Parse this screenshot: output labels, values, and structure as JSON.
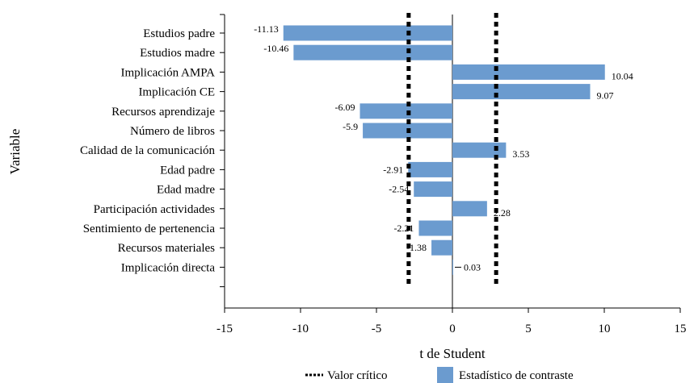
{
  "chart_data": {
    "type": "bar",
    "orientation": "horizontal",
    "categories": [
      "Estudios padre",
      "Estudios madre",
      "Implicación AMPA",
      "Implicación CE",
      "Recursos aprendizaje",
      "Número de libros",
      "Calidad de la comunicación",
      "Edad padre",
      "Edad madre",
      "Participación actividades",
      "Sentimiento de pertenencia",
      "Recursos materiales",
      "Implicación directa"
    ],
    "values": [
      -11.13,
      -10.46,
      10.04,
      9.07,
      -6.09,
      -5.9,
      3.53,
      -2.91,
      -2.54,
      2.28,
      -2.21,
      -1.38,
      0.03
    ],
    "data_labels": [
      "-11.13",
      "-10.46",
      "10.04",
      "9.07",
      "-6.09",
      "-5.9",
      "3.53",
      "-2.91",
      "-2.54",
      "2.28",
      "-2.21",
      "-1.38",
      "0.03"
    ],
    "critical_value": [
      -2.88,
      2.88
    ],
    "xlim": [
      -15,
      15
    ],
    "xticks": [
      -15,
      -10,
      -5,
      0,
      5,
      10,
      15
    ],
    "xlabel": "t de Student",
    "ylabel": "Variable",
    "legend": {
      "position": "bottom",
      "entries": [
        "Valor crítico",
        "Estadístico de contraste"
      ]
    },
    "colors": {
      "bar": "#6b9bcf",
      "critical_line": "#000000",
      "axis": "#000000"
    },
    "grid": false
  }
}
